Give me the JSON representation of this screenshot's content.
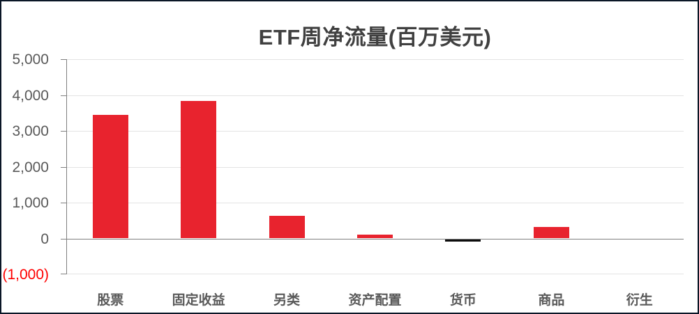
{
  "chart_data": {
    "type": "bar",
    "title": "ETF周净流量(百万美元)",
    "categories": [
      "股票",
      "固定收益",
      "另类",
      "资产配置",
      "货币",
      "商品",
      "衍生"
    ],
    "values": [
      3450,
      3840,
      640,
      100,
      -50,
      330,
      0
    ],
    "bar_colors": [
      "#e8232e",
      "#e8232e",
      "#e8232e",
      "#e8232e",
      "#0d0d0d",
      "#e8232e",
      "#e8232e"
    ],
    "xlabel": "",
    "ylabel": "",
    "ylim": [
      -1000,
      5000
    ],
    "ytick_interval": 1000,
    "ytick_labels": [
      "5,000",
      "4,000",
      "3,000",
      "2,000",
      "1,000",
      "0",
      "(1,000)"
    ],
    "ytick_colors": [
      "#595959",
      "#595959",
      "#595959",
      "#595959",
      "#595959",
      "#595959",
      "#ff0000"
    ],
    "grid": true,
    "legend": false
  },
  "colors": {
    "bar": "#e8232e",
    "negative_bar": "#0d0d0d",
    "axis": "#7f7f7f",
    "grid": "#e3e3e3",
    "tick_label": "#595959",
    "negative_tick_label": "#ff0000",
    "title": "#404040",
    "frame_border": "#0a1626",
    "background": "#ffffff"
  }
}
